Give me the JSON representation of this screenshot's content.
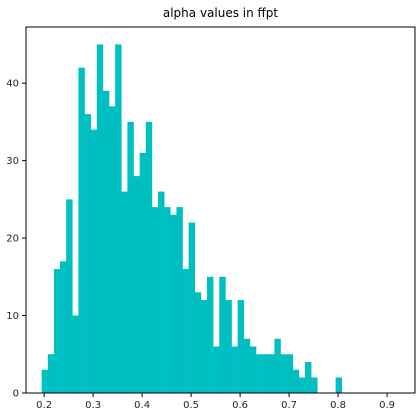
{
  "chart_data": {
    "type": "bar",
    "title": "alpha values in ffpt",
    "xlabel": "",
    "ylabel": "",
    "xlim": [
      0.163,
      0.957
    ],
    "ylim": [
      0,
      47.25
    ],
    "grid": false,
    "bar_color": "#00bfc0",
    "bin_start": 0.195,
    "bin_width": 0.0125,
    "values": [
      3,
      5,
      16,
      17,
      25,
      10,
      42,
      36,
      34,
      45,
      39,
      37,
      45,
      26,
      35,
      28,
      31,
      35,
      24,
      26,
      24,
      23,
      24,
      16,
      22,
      13,
      12,
      15,
      6,
      15,
      12,
      6,
      12,
      7,
      6,
      5,
      5,
      5,
      7,
      5,
      5,
      3,
      2,
      4,
      2,
      0,
      0,
      0,
      2
    ],
    "x_ticks": [
      "0.2",
      "0.3",
      "0.4",
      "0.5",
      "0.6",
      "0.7",
      "0.8",
      "0.9"
    ],
    "y_ticks": [
      "0",
      "10",
      "20",
      "30",
      "40"
    ]
  }
}
